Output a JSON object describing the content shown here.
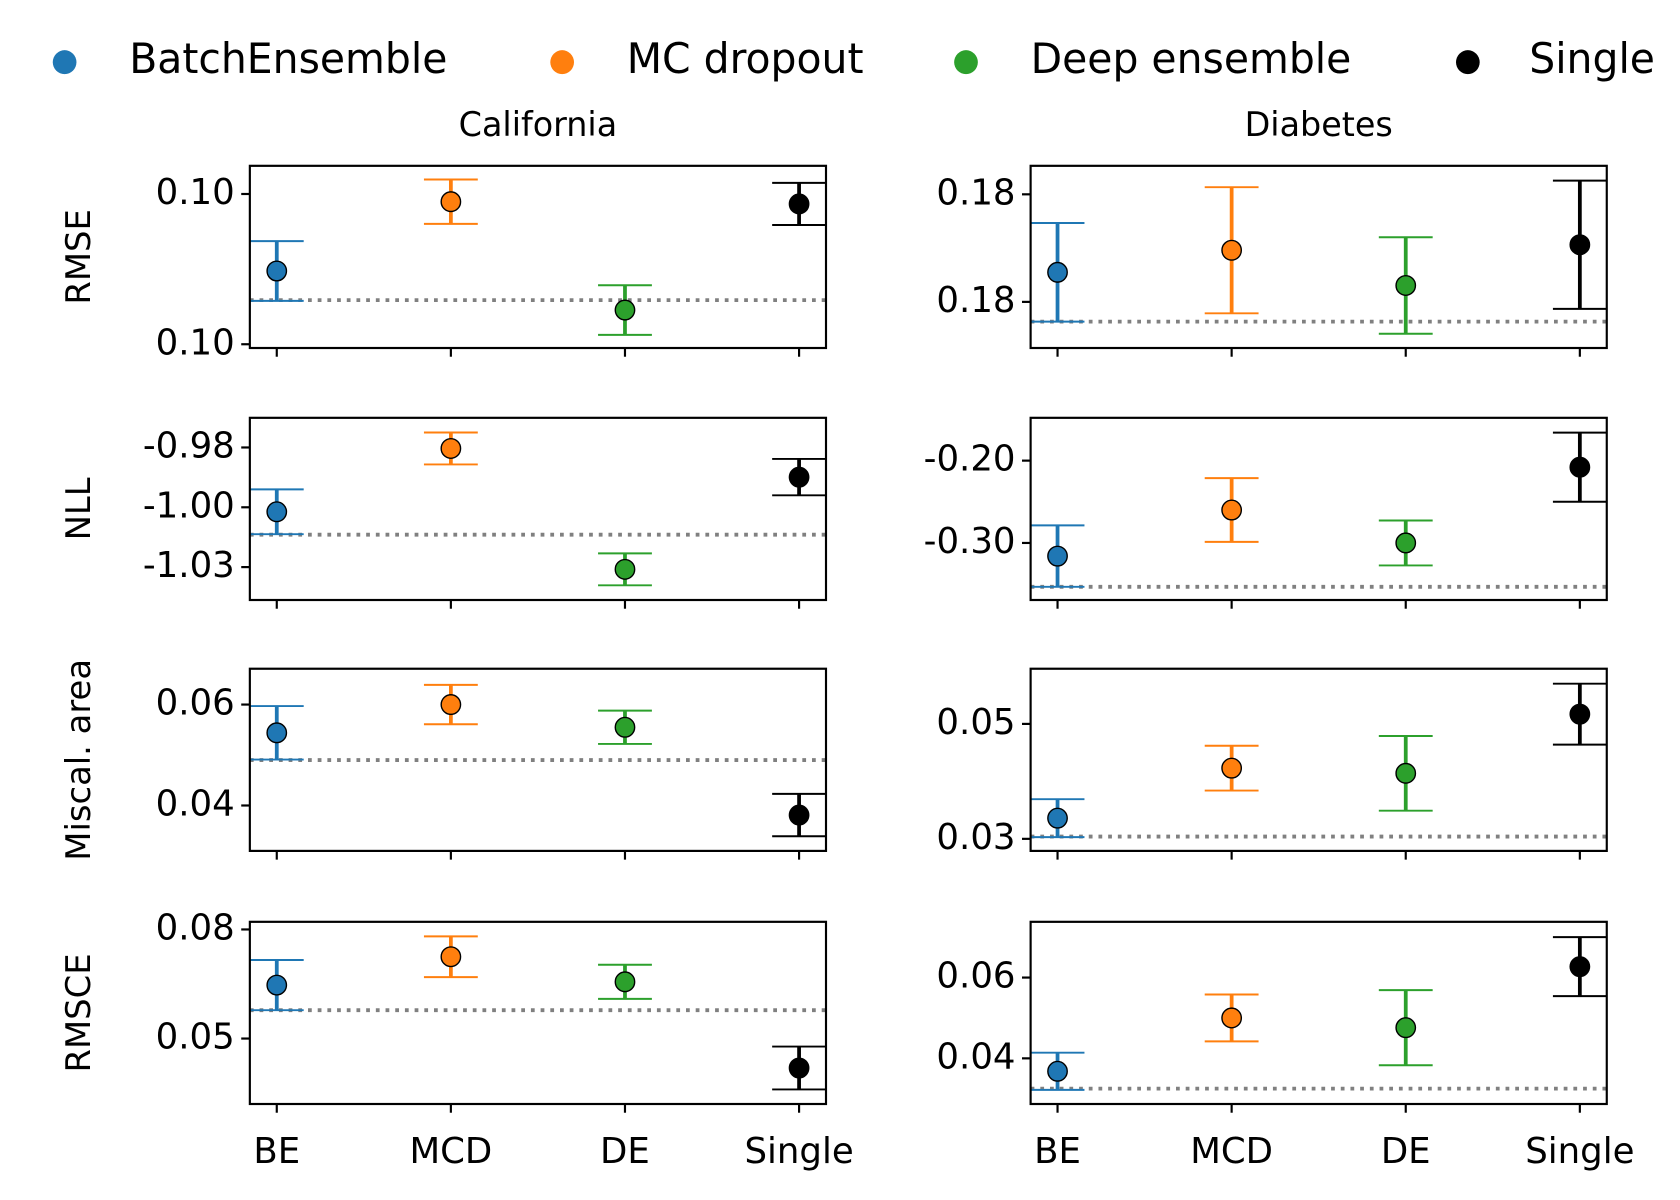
{
  "legend": {
    "entries": [
      {
        "name": "BatchEnsemble",
        "color": "#1f77b4"
      },
      {
        "name": "MC dropout",
        "color": "#ff7f0e"
      },
      {
        "name": "Deep ensemble",
        "color": "#2ca02c"
      },
      {
        "name": "Single",
        "color": "#000000"
      }
    ]
  },
  "chart_data": [
    {
      "type": "errorbar",
      "title": "California",
      "ylabel": "RMSE",
      "values": [
        0.09999,
        0.100359,
        0.099782,
        0.100347
      ],
      "errors": [
        0.000159,
        0.000118,
        0.000132,
        0.000112
      ],
      "reference": 0.099835,
      "ylim": [
        0.09958,
        0.10055
      ],
      "yticks": [
        {
          "value": 0.0996,
          "label": "0.10"
        },
        {
          "value": 0.1004,
          "label": "0.10"
        }
      ]
    },
    {
      "type": "errorbar",
      "title": "Diabetes",
      "values": [
        0.17982,
        0.179984,
        0.179722,
        0.180025
      ],
      "errors": [
        0.000367,
        0.000469,
        0.000359,
        0.000477
      ],
      "reference": 0.179453,
      "ylim": [
        0.179257,
        0.180612
      ],
      "yticks": [
        {
          "value": 0.1796,
          "label": "0.18"
        },
        {
          "value": 0.1804,
          "label": "0.18"
        }
      ]
    },
    {
      "type": "errorbar",
      "ylabel": "NLL",
      "values": [
        -1.0063,
        -0.9809,
        -1.0294,
        -0.9924
      ],
      "errors": [
        0.009,
        0.0064,
        0.0064,
        0.0073
      ],
      "reference": -1.0155,
      "ylim": [
        -1.0417,
        -0.9686
      ],
      "yticks": [
        {
          "value": -1.0285,
          "label": "-1.03"
        },
        {
          "value": -1.0045,
          "label": "-1.00"
        },
        {
          "value": -0.9805,
          "label": "-0.98"
        }
      ]
    },
    {
      "type": "errorbar",
      "values": [
        -0.316,
        -0.26,
        -0.3,
        -0.208
      ],
      "errors": [
        0.0373,
        0.0387,
        0.0273,
        0.042
      ],
      "reference": -0.3533,
      "ylim": [
        -0.3693,
        -0.148
      ],
      "yticks": [
        {
          "value": -0.3,
          "label": "-0.30"
        },
        {
          "value": -0.2,
          "label": "-0.20"
        }
      ]
    },
    {
      "type": "errorbar",
      "ylabel": "Miscal. area",
      "values": [
        0.0544,
        0.06,
        0.0555,
        0.0381
      ],
      "errors": [
        0.0053,
        0.0039,
        0.0033,
        0.0042
      ],
      "reference": 0.049,
      "ylim": [
        0.031,
        0.0671
      ],
      "yticks": [
        0.04,
        0.06
      ]
    },
    {
      "type": "errorbar",
      "values": [
        0.0336,
        0.0423,
        0.0414,
        0.0517
      ],
      "errors": [
        0.0033,
        0.0039,
        0.0065,
        0.0053
      ],
      "reference": 0.0304,
      "ylim": [
        0.0279,
        0.0596
      ],
      "yticks": [
        0.03,
        0.05
      ]
    },
    {
      "type": "errorbar",
      "ylabel": "RMSCE",
      "categories": [
        "BE",
        "MCD",
        "DE",
        "Single"
      ],
      "values": [
        0.0647,
        0.0725,
        0.0656,
        0.0419
      ],
      "errors": [
        0.0069,
        0.0056,
        0.0047,
        0.0059
      ],
      "reference": 0.0578,
      "ylim": [
        0.032,
        0.0821
      ],
      "yticks": [
        0.05,
        0.08
      ]
    },
    {
      "type": "errorbar",
      "categories": [
        "BE",
        "MCD",
        "DE",
        "Single"
      ],
      "values": [
        0.0368,
        0.05,
        0.0476,
        0.0627
      ],
      "errors": [
        0.0046,
        0.0058,
        0.0093,
        0.0073
      ],
      "reference": 0.0325,
      "ylim": [
        0.0287,
        0.0738
      ],
      "yticks": [
        0.04,
        0.06
      ]
    }
  ]
}
